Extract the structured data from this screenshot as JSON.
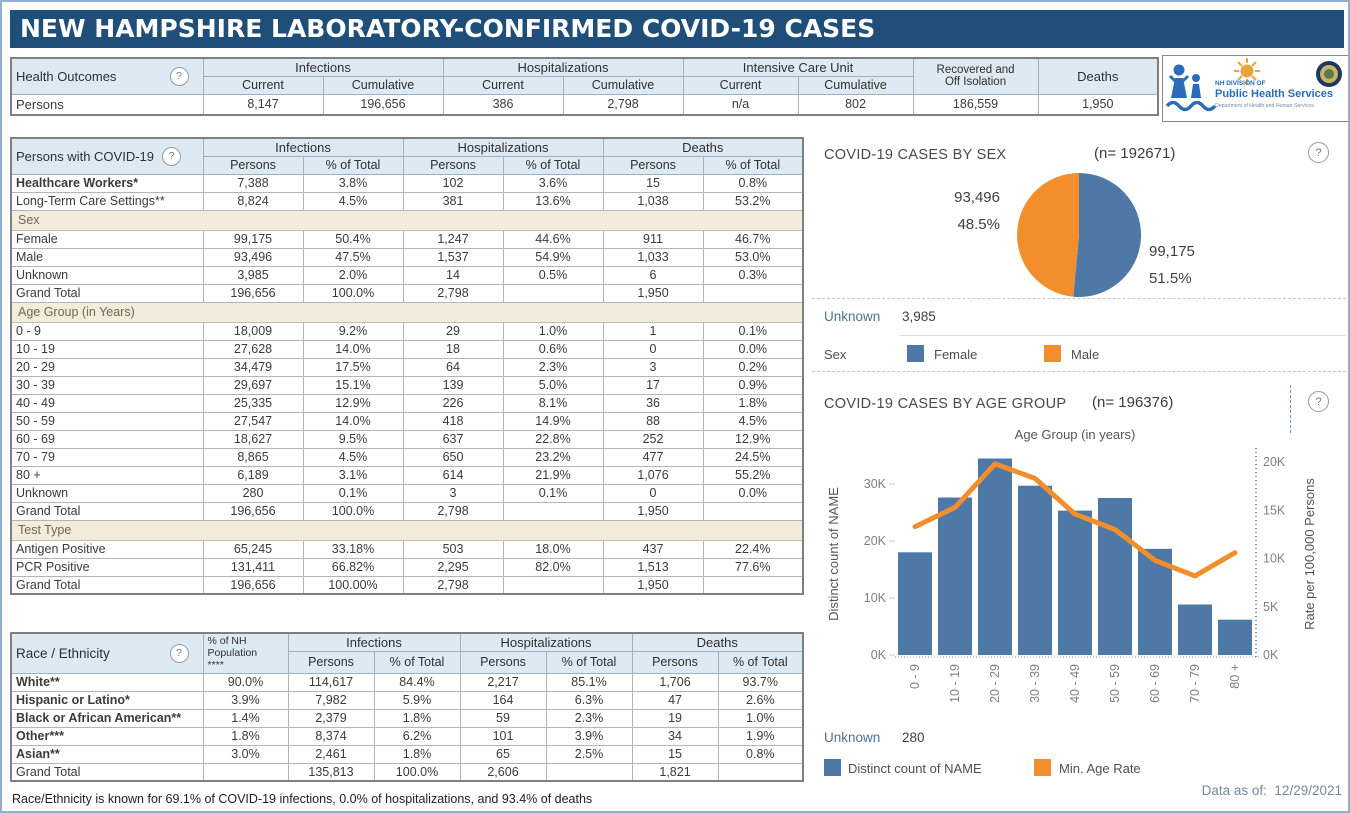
{
  "banner": {
    "title": "NEW HAMPSHIRE LABORATORY-CONFIRMED COVID-19 CASES"
  },
  "icons": {
    "help": "?"
  },
  "colors": {
    "banner_bg": "#1F4E79",
    "header_bg": "#DEEAF3",
    "section_bg": "#F3EBDC",
    "blue": "#4E79A7",
    "orange": "#F28E2B"
  },
  "logo": {
    "line1": "NH DIVISION OF",
    "line2": "Public Health Services",
    "line3": "Department of Health and Human Services"
  },
  "health_outcomes": {
    "title": "Health Outcomes",
    "groups": [
      "Infections",
      "Hospitalizations",
      "Intensive Care Unit"
    ],
    "sub": [
      "Current",
      "Cumulative"
    ],
    "recovered_line1": "Recovered and",
    "recovered_line2": "Off Isolation",
    "deaths": "Deaths",
    "row_label": "Persons",
    "values": [
      "8,147",
      "196,656",
      "386",
      "2,798",
      "n/a",
      "802",
      "186,559",
      "1,950"
    ]
  },
  "persons_table": {
    "title": "Persons with COVID-19",
    "groups": [
      "Infections",
      "Hospitalizations",
      "Deaths"
    ],
    "sub": [
      "Persons",
      "% of Total"
    ],
    "lead_rows": [
      {
        "label": "Healthcare Workers*",
        "bold": true,
        "values": [
          "7,388",
          "3.8%",
          "102",
          "3.6%",
          "15",
          "0.8%"
        ]
      },
      {
        "label": "Long-Term Care Settings**",
        "bold": false,
        "values": [
          "8,824",
          "4.5%",
          "381",
          "13.6%",
          "1,038",
          "53.2%"
        ]
      }
    ],
    "sections": [
      {
        "header": "Sex",
        "rows": [
          {
            "label": "Female",
            "values": [
              "99,175",
              "50.4%",
              "1,247",
              "44.6%",
              "911",
              "46.7%"
            ]
          },
          {
            "label": "Male",
            "values": [
              "93,496",
              "47.5%",
              "1,537",
              "54.9%",
              "1,033",
              "53.0%"
            ]
          },
          {
            "label": "Unknown",
            "values": [
              "3,985",
              "2.0%",
              "14",
              "0.5%",
              "6",
              "0.3%"
            ]
          },
          {
            "label": "Grand Total",
            "values": [
              "196,656",
              "100.0%",
              "2,798",
              "",
              "1,950",
              ""
            ]
          }
        ]
      },
      {
        "header": "Age Group (in Years)",
        "rows": [
          {
            "label": "0 - 9",
            "values": [
              "18,009",
              "9.2%",
              "29",
              "1.0%",
              "1",
              "0.1%"
            ]
          },
          {
            "label": "10 - 19",
            "values": [
              "27,628",
              "14.0%",
              "18",
              "0.6%",
              "0",
              "0.0%"
            ]
          },
          {
            "label": "20 - 29",
            "values": [
              "34,479",
              "17.5%",
              "64",
              "2.3%",
              "3",
              "0.2%"
            ]
          },
          {
            "label": "30 - 39",
            "values": [
              "29,697",
              "15.1%",
              "139",
              "5.0%",
              "17",
              "0.9%"
            ]
          },
          {
            "label": "40 - 49",
            "values": [
              "25,335",
              "12.9%",
              "226",
              "8.1%",
              "36",
              "1.8%"
            ]
          },
          {
            "label": "50 - 59",
            "values": [
              "27,547",
              "14.0%",
              "418",
              "14.9%",
              "88",
              "4.5%"
            ]
          },
          {
            "label": "60 - 69",
            "values": [
              "18,627",
              "9.5%",
              "637",
              "22.8%",
              "252",
              "12.9%"
            ]
          },
          {
            "label": "70 - 79",
            "values": [
              "8,865",
              "4.5%",
              "650",
              "23.2%",
              "477",
              "24.5%"
            ]
          },
          {
            "label": "80 +",
            "values": [
              "6,189",
              "3.1%",
              "614",
              "21.9%",
              "1,076",
              "55.2%"
            ]
          },
          {
            "label": "Unknown",
            "values": [
              "280",
              "0.1%",
              "3",
              "0.1%",
              "0",
              "0.0%"
            ]
          },
          {
            "label": "Grand Total",
            "values": [
              "196,656",
              "100.0%",
              "2,798",
              "",
              "1,950",
              ""
            ]
          }
        ]
      },
      {
        "header": "Test Type",
        "rows": [
          {
            "label": "Antigen Positive",
            "values": [
              "65,245",
              "33.18%",
              "503",
              "18.0%",
              "437",
              "22.4%"
            ]
          },
          {
            "label": "PCR Positive",
            "values": [
              "131,411",
              "66.82%",
              "2,295",
              "82.0%",
              "1,513",
              "77.6%"
            ]
          },
          {
            "label": "Grand Total",
            "values": [
              "196,656",
              "100.00%",
              "2,798",
              "",
              "1,950",
              ""
            ]
          }
        ]
      }
    ]
  },
  "race_table": {
    "title": "Race / Ethnicity",
    "pop_header": [
      "% of NH",
      "Population",
      "****"
    ],
    "groups": [
      "Infections",
      "Hospitalizations",
      "Deaths"
    ],
    "sub": [
      "Persons",
      "% of Total"
    ],
    "rows": [
      {
        "label": "White**",
        "bold": true,
        "values": [
          "90.0%",
          "114,617",
          "84.4%",
          "2,217",
          "85.1%",
          "1,706",
          "93.7%"
        ]
      },
      {
        "label": "Hispanic or Latino*",
        "bold": true,
        "values": [
          "3.9%",
          "7,982",
          "5.9%",
          "164",
          "6.3%",
          "47",
          "2.6%"
        ]
      },
      {
        "label": "Black or African American**",
        "bold": true,
        "values": [
          "1.4%",
          "2,379",
          "1.8%",
          "59",
          "2.3%",
          "19",
          "1.0%"
        ]
      },
      {
        "label": "Other***",
        "bold": true,
        "values": [
          "1.8%",
          "8,374",
          "6.2%",
          "101",
          "3.9%",
          "34",
          "1.9%"
        ]
      },
      {
        "label": "Asian**",
        "bold": true,
        "values": [
          "3.0%",
          "2,461",
          "1.8%",
          "65",
          "2.5%",
          "15",
          "0.8%"
        ]
      },
      {
        "label": "Grand Total",
        "bold": false,
        "values": [
          "",
          "135,813",
          "100.0%",
          "2,606",
          "",
          "1,821",
          ""
        ]
      }
    ]
  },
  "footnote": "Race/Ethnicity is known for 69.1% of COVID-19 infections, 0.0% of hospitalizations, and 93.4% of deaths",
  "data_as_of": {
    "label": "Data as of:",
    "date": "12/29/2021"
  },
  "chart_data": [
    {
      "type": "pie",
      "title": "COVID-19 CASES BY SEX",
      "n_label": "(n= 192671)",
      "slices": [
        {
          "label": "Female",
          "value": 99175,
          "value_label": "99,175",
          "pct_label": "51.5%",
          "color": "#4E79A7"
        },
        {
          "label": "Male",
          "value": 93496,
          "value_label": "93,496",
          "pct_label": "48.5%",
          "color": "#F28E2B"
        }
      ],
      "legend_title": "Sex",
      "legend_position": "bottom",
      "unknown_label": "Unknown",
      "unknown_value": "3,985"
    },
    {
      "type": "bar",
      "title": "COVID-19 CASES BY AGE GROUP",
      "n_label": "(n= 196376)",
      "x_title": "Age Group (in years)",
      "categories": [
        "0 - 9",
        "10 - 19",
        "20 - 29",
        "30 - 39",
        "40 - 49",
        "50 - 59",
        "60 - 69",
        "70 - 79",
        "80 +"
      ],
      "series": [
        {
          "name": "Distinct count of NAME",
          "mark": "bar",
          "axis": "left",
          "color": "#4E79A7",
          "values": [
            18009,
            27628,
            34479,
            29697,
            25335,
            27547,
            18627,
            8865,
            6189
          ]
        },
        {
          "name": "Min. Age Rate",
          "mark": "line",
          "axis": "right",
          "color": "#F28E2B",
          "values": [
            13300,
            15300,
            19800,
            18300,
            14600,
            13000,
            9800,
            8200,
            10600
          ]
        }
      ],
      "left_axis": {
        "title": "Distinct count of NAME",
        "ticks": [
          "0K",
          "10K",
          "20K",
          "30K"
        ],
        "tick_values": [
          0,
          10000,
          20000,
          30000
        ],
        "max": 35300
      },
      "right_axis": {
        "title": "Rate per 100,000 Persons",
        "ticks": [
          "0K",
          "5K",
          "10K",
          "15K",
          "20K"
        ],
        "tick_values": [
          0,
          5000,
          10000,
          15000,
          20000
        ],
        "max": 20800
      },
      "grid": false,
      "legend_position": "bottom",
      "unknown_label": "Unknown",
      "unknown_value": "280"
    }
  ]
}
